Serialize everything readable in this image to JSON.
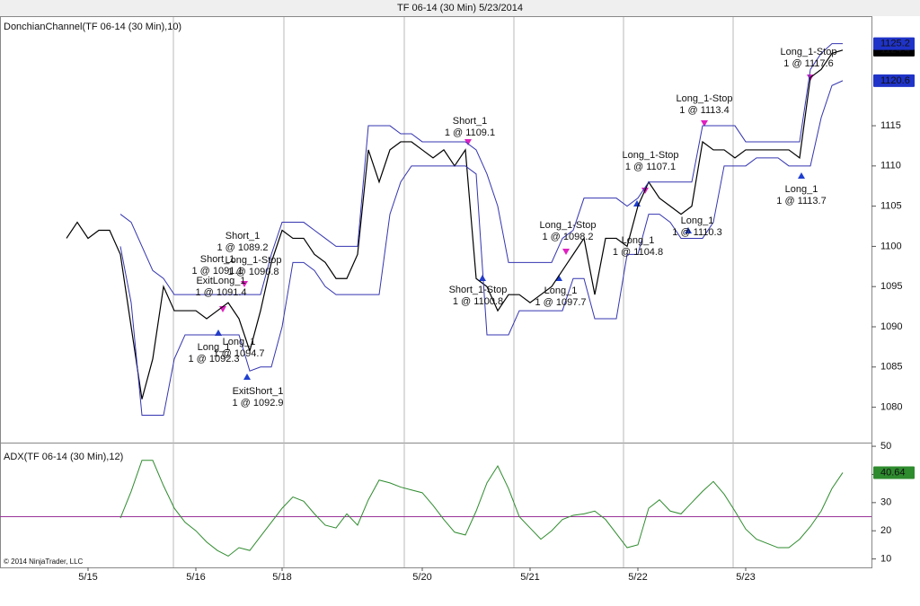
{
  "window_title": "TF 06-14 (30 Min)  5/23/2014",
  "footer": "© 2014 NinjaTrader, LLC",
  "chart_data": [
    {
      "type": "line",
      "title": "DonchianChannel(TF 06-14 (30 Min),10)",
      "categories": [
        null,
        null,
        "5/15",
        null,
        null,
        null,
        null,
        null,
        null,
        null,
        null,
        null,
        "5/16",
        null,
        null,
        null,
        null,
        null,
        null,
        null,
        "5/18",
        null,
        null,
        null,
        null,
        null,
        null,
        null,
        null,
        null,
        null,
        null,
        null,
        "5/20",
        null,
        null,
        null,
        null,
        null,
        null,
        null,
        null,
        null,
        "5/21",
        null,
        null,
        null,
        null,
        null,
        null,
        null,
        null,
        null,
        "5/22",
        null,
        null,
        null,
        null,
        null,
        null,
        null,
        null,
        null,
        "5/23",
        null,
        null,
        null,
        null,
        null,
        null,
        null,
        null,
        null
      ],
      "series": [
        {
          "color": "#000000",
          "values": [
            1101,
            1103,
            1101,
            1102,
            1102,
            1099,
            1090,
            1081,
            1086,
            1095,
            1092,
            1092,
            1092,
            1091,
            1092,
            1093,
            1091,
            1087,
            1092,
            1098,
            1102,
            1101,
            1101,
            1099,
            1098,
            1096,
            1096,
            1099,
            1112,
            1108,
            1112,
            1113,
            1113,
            1112,
            1111,
            1112,
            1110,
            1112,
            1096,
            1095,
            1092,
            1094,
            1094,
            1093,
            1094,
            1095,
            1097,
            1099,
            1101,
            1094,
            1101,
            1101,
            1100,
            1105,
            1108,
            1106,
            1105,
            1104,
            1105,
            1113,
            1112,
            1112,
            1111,
            1112,
            1112,
            1112,
            1112,
            1112,
            1111,
            1121,
            1122,
            1124,
            1124.4
          ]
        },
        {
          "color": "#3434b0",
          "values": [
            null,
            null,
            null,
            null,
            null,
            1104,
            1103,
            1100,
            1097,
            1096,
            1094,
            1094,
            1094,
            1094,
            1094,
            1094,
            1094,
            1094,
            1094,
            1099,
            1103,
            1103,
            1103,
            1102,
            1101,
            1100,
            1100,
            1100,
            1115,
            1115,
            1115,
            1114,
            1114,
            1113,
            1113,
            1113,
            1113,
            1113,
            1112,
            1109,
            1105,
            1098,
            1098,
            1098,
            1098,
            1098,
            1101,
            1102,
            1106,
            1106,
            1106,
            1106,
            1105,
            1106,
            1108,
            1108,
            1108,
            1108,
            1108,
            1115,
            1115,
            1115,
            1115,
            1113,
            1113,
            1113,
            1113,
            1113,
            1113,
            1122,
            1124,
            1125.2,
            1125.2
          ]
        },
        {
          "color": "#3434b0",
          "values": [
            null,
            null,
            null,
            null,
            null,
            1100,
            1093,
            1079,
            1079,
            1079,
            1086,
            1089,
            1089,
            1089,
            1089,
            1089,
            1089,
            1084.5,
            1085,
            1085,
            1090,
            1098,
            1098,
            1097,
            1095,
            1094,
            1094,
            1094,
            1094,
            1094,
            1104,
            1108,
            1110,
            1110,
            1110,
            1110,
            1110,
            1110,
            1109,
            1089,
            1089,
            1089,
            1092,
            1092,
            1092,
            1092,
            1092,
            1096,
            1096,
            1091,
            1091,
            1091,
            1099,
            1099,
            1104,
            1104,
            1103,
            1101,
            1101,
            1101,
            1103,
            1110,
            1110,
            1110,
            1111,
            1111,
            1111,
            1110,
            1110,
            1110,
            1116,
            1120,
            1120.6
          ]
        }
      ],
      "label_colors": [
        "#000000",
        "#1f33c8",
        "#1f33c8"
      ],
      "ylim": [
        1075.6,
        1128.4
      ],
      "yticks": [
        1080,
        1085,
        1090,
        1095,
        1100,
        1105,
        1110,
        1115
      ],
      "annotations": [
        {
          "label": "Short_1",
          "fill": "1 @ 1089.2"
        },
        {
          "label": "Short_1",
          "fill": "1 @ 1091.1"
        },
        {
          "label": "Long_1-Stop",
          "fill": "1 @ 1090.8"
        },
        {
          "label": "ExitLong_1",
          "fill": "1 @ 1091.4"
        },
        {
          "label": "Long_1",
          "fill": "1 @ 1094.7"
        },
        {
          "label": "Long_1",
          "fill": "1 @ 1092.3"
        },
        {
          "label": "ExitShort_1",
          "fill": "1 @ 1092.9"
        },
        {
          "label": "Short_1",
          "fill": "1 @ 1109.1"
        },
        {
          "label": "Short_1-Stop",
          "fill": "1 @ 1100.8"
        },
        {
          "label": "Long_1-Stop",
          "fill": "1 @ 1098.2"
        },
        {
          "label": "Long_1",
          "fill": "1 @ 1097.7"
        },
        {
          "label": "Long_1",
          "fill": "1 @ 1104.8"
        },
        {
          "label": "Long_1-Stop",
          "fill": "1 @ 1107.1"
        },
        {
          "label": "Long_1-Stop",
          "fill": "1 @ 1113.4"
        },
        {
          "label": "Long_1",
          "fill": "1 @ 1110.3"
        },
        {
          "label": "Long_1",
          "fill": "1 @ 1113.7"
        },
        {
          "label": "Long_1-Stop",
          "fill": "1 @ 1117.6"
        }
      ]
    },
    {
      "type": "line",
      "title": "ADX(TF 06-14 (30 Min),12)",
      "series": [
        {
          "color": "#2e8b2e",
          "values": [
            null,
            null,
            null,
            null,
            null,
            24.5,
            34,
            45,
            45,
            36,
            28,
            23,
            20,
            16,
            13,
            11,
            14,
            13,
            18,
            23,
            28,
            32,
            30.5,
            26,
            22,
            21,
            26,
            22,
            31,
            38,
            37,
            35.5,
            34.5,
            33.5,
            29,
            24,
            19.5,
            18.5,
            27,
            37,
            43,
            35,
            25,
            21,
            17,
            20,
            24,
            25.5,
            26,
            27,
            24,
            19,
            14,
            15,
            28,
            31,
            27,
            26,
            30,
            34,
            37.5,
            33,
            27,
            20.6,
            17,
            15.5,
            14,
            14,
            17,
            21.5,
            27,
            35,
            40.64
          ]
        }
      ],
      "level": 25,
      "level_color": "#993399",
      "ylim": [
        7,
        51.3
      ],
      "yticks": [
        10,
        20,
        30,
        40,
        50
      ]
    }
  ]
}
